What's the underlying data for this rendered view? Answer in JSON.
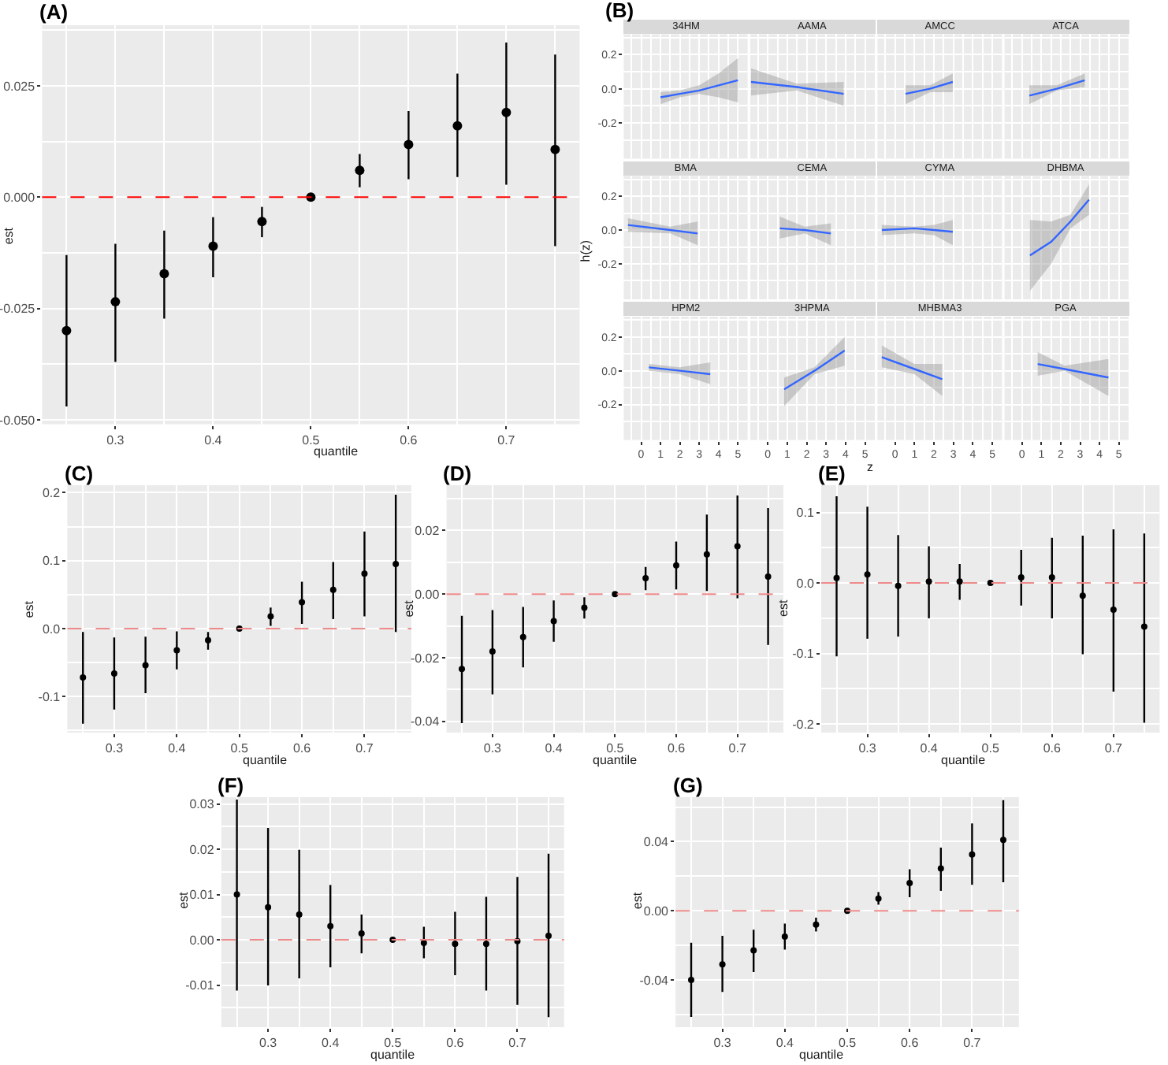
{
  "chart_data": [
    {
      "type": "scatter",
      "title": "(A)",
      "xlabel": "quantile",
      "ylabel": "est",
      "marker": "circle",
      "grid": true,
      "x": [
        0.25,
        0.3,
        0.35,
        0.4,
        0.45,
        0.5,
        0.55,
        0.6,
        0.65,
        0.7,
        0.75
      ],
      "series": [
        {
          "color": "#000000",
          "values": [
            -0.03,
            -0.0235,
            -0.0172,
            -0.011,
            -0.0055,
            0,
            0.006,
            0.0118,
            0.016,
            0.019,
            0.0107
          ],
          "errors": [
            [
              -0.047,
              -0.013
            ],
            [
              -0.037,
              -0.0105
            ],
            [
              -0.0273,
              -0.0075
            ],
            [
              -0.018,
              -0.0045
            ],
            [
              -0.009,
              -0.0022
            ],
            null,
            [
              0.0022,
              0.0097
            ],
            [
              0.004,
              0.0193
            ],
            [
              0.0045,
              0.0277
            ],
            [
              0.0028,
              0.0347
            ],
            [
              -0.011,
              0.032
            ]
          ]
        }
      ],
      "xlim": [
        0.225,
        0.775
      ],
      "xticks": [
        0.3,
        0.4,
        0.5,
        0.6,
        0.7
      ],
      "ylim": [
        -0.051,
        0.0386
      ],
      "yticks": [
        {
          "value": -0.05,
          "label": "-0.050"
        },
        {
          "value": -0.025,
          "label": "-0.025"
        },
        {
          "value": 0,
          "label": "0.000"
        },
        {
          "value": 0.025,
          "label": "0.025"
        }
      ],
      "ref_lines": [
        {
          "axis": "y",
          "value": 0,
          "color": "#ff0000",
          "line_style": "dashed"
        }
      ]
    },
    {
      "type": "line",
      "title": "34HM",
      "annotations": [
        "(B)"
      ],
      "grid": true,
      "tick_labels": "y",
      "series": [
        {
          "color": "#3366ff",
          "x": [
            1,
            2,
            3,
            4,
            5
          ],
          "values": [
            -0.05,
            -0.03,
            -0.01,
            0.02,
            0.05
          ],
          "lower": [
            -0.09,
            -0.05,
            -0.03,
            -0.05,
            -0.08
          ],
          "upper": [
            -0.02,
            -0.01,
            0.02,
            0.09,
            0.18
          ]
        }
      ],
      "xlim": [
        -0.9,
        5.5
      ],
      "xticks": [
        0,
        1,
        2,
        3,
        4,
        5
      ],
      "ylim": [
        -0.41,
        0.32
      ],
      "yticks": [
        -0.2,
        {
          "value": 0,
          "label": "0.0"
        },
        0.2
      ]
    },
    {
      "type": "line",
      "title": "AAMA",
      "grid": true,
      "tick_labels": false,
      "series": [
        {
          "color": "#3366ff",
          "x": [
            -0.86,
            1.5,
            3.9
          ],
          "values": [
            0.04,
            0.01,
            -0.03
          ],
          "lower": [
            -0.04,
            -0.01,
            -0.1
          ],
          "upper": [
            0.12,
            0.03,
            0.04
          ]
        }
      ],
      "xlim": [
        -0.9,
        5.5
      ],
      "xticks": [
        0,
        1,
        2,
        3,
        4,
        5
      ],
      "ylim": [
        -0.41,
        0.32
      ],
      "yticks": [
        -0.2,
        0,
        0.2
      ]
    },
    {
      "type": "line",
      "title": "AMCC",
      "grid": true,
      "tick_labels": false,
      "series": [
        {
          "color": "#3366ff",
          "x": [
            0.54,
            1.8,
            2.97
          ],
          "values": [
            -0.03,
            0.0,
            0.04
          ],
          "lower": [
            -0.09,
            -0.02,
            -0.02
          ],
          "upper": [
            0.02,
            0.02,
            0.09
          ]
        }
      ],
      "xlim": [
        -0.9,
        5.5
      ],
      "xticks": [
        0,
        1,
        2,
        3,
        4,
        5
      ],
      "ylim": [
        -0.41,
        0.32
      ],
      "yticks": [
        -0.2,
        0,
        0.2
      ]
    },
    {
      "type": "line",
      "title": "ATCA",
      "grid": true,
      "tick_labels": false,
      "series": [
        {
          "color": "#3366ff",
          "x": [
            0.38,
            1.8,
            3.24
          ],
          "values": [
            -0.04,
            0.0,
            0.05
          ],
          "lower": [
            -0.09,
            -0.01,
            0.01
          ],
          "upper": [
            0.02,
            0.02,
            0.09
          ]
        }
      ],
      "xlim": [
        -0.9,
        5.5
      ],
      "xticks": [
        0,
        1,
        2,
        3,
        4,
        5
      ],
      "ylim": [
        -0.41,
        0.32
      ],
      "yticks": [
        -0.2,
        0,
        0.2
      ]
    },
    {
      "type": "line",
      "title": "BMA",
      "ylabel": "h(z)",
      "grid": true,
      "tick_labels": "y",
      "series": [
        {
          "color": "#3366ff",
          "x": [
            -0.68,
            1.5,
            2.92
          ],
          "values": [
            0.03,
            0.0,
            -0.02
          ],
          "lower": [
            -0.01,
            -0.02,
            -0.09
          ],
          "upper": [
            0.07,
            0.02,
            0.05
          ]
        }
      ],
      "xlim": [
        -0.9,
        5.5
      ],
      "xticks": [
        0,
        1,
        2,
        3,
        4,
        5
      ],
      "ylim": [
        -0.41,
        0.32
      ],
      "yticks": [
        -0.2,
        {
          "value": 0,
          "label": "0.0"
        },
        0.2
      ]
    },
    {
      "type": "line",
      "title": "CEMA",
      "grid": true,
      "tick_labels": false,
      "series": [
        {
          "color": "#3366ff",
          "x": [
            0.62,
            1.9,
            3.24
          ],
          "values": [
            0.01,
            0.0,
            -0.02
          ],
          "lower": [
            -0.05,
            -0.02,
            -0.09
          ],
          "upper": [
            0.08,
            0.02,
            0.04
          ]
        }
      ],
      "xlim": [
        -0.9,
        5.5
      ],
      "xticks": [
        0,
        1,
        2,
        3,
        4,
        5
      ],
      "ylim": [
        -0.41,
        0.32
      ],
      "yticks": [
        -0.2,
        0,
        0.2
      ]
    },
    {
      "type": "line",
      "title": "CYMA",
      "grid": true,
      "tick_labels": false,
      "series": [
        {
          "color": "#3366ff",
          "x": [
            -0.68,
            1.0,
            2.0,
            2.97
          ],
          "values": [
            0.0,
            0.01,
            0.0,
            -0.01
          ],
          "lower": [
            -0.03,
            -0.02,
            -0.03,
            -0.09
          ],
          "upper": [
            0.03,
            0.02,
            0.03,
            0.06
          ]
        }
      ],
      "xlim": [
        -0.9,
        5.5
      ],
      "xticks": [
        0,
        1,
        2,
        3,
        4,
        5
      ],
      "ylim": [
        -0.41,
        0.32
      ],
      "yticks": [
        -0.2,
        0,
        0.2
      ]
    },
    {
      "type": "line",
      "title": "DHBMA",
      "grid": true,
      "tick_labels": false,
      "series": [
        {
          "color": "#3366ff",
          "x": [
            0.41,
            1.5,
            2.5,
            3.46
          ],
          "values": [
            -0.15,
            -0.07,
            0.05,
            0.18
          ],
          "lower": [
            -0.36,
            -0.2,
            0.01,
            0.09
          ],
          "upper": [
            0.06,
            0.05,
            0.09,
            0.27
          ]
        }
      ],
      "xlim": [
        -0.9,
        5.5
      ],
      "xticks": [
        0,
        1,
        2,
        3,
        4,
        5
      ],
      "ylim": [
        -0.41,
        0.32
      ],
      "yticks": [
        -0.2,
        0,
        0.2
      ]
    },
    {
      "type": "line",
      "title": "HPM2",
      "grid": true,
      "series": [
        {
          "color": "#3366ff",
          "x": [
            0.4,
            2.0,
            3.57
          ],
          "values": [
            0.02,
            0.0,
            -0.02
          ],
          "lower": [
            0.0,
            -0.02,
            -0.08
          ],
          "upper": [
            0.04,
            0.02,
            0.05
          ]
        }
      ],
      "xlim": [
        -0.9,
        5.5
      ],
      "xticks": [
        0,
        1,
        2,
        3,
        4,
        5
      ],
      "ylim": [
        -0.41,
        0.32
      ],
      "yticks": [
        -0.2,
        {
          "value": 0,
          "label": "0.0"
        },
        0.2
      ]
    },
    {
      "type": "line",
      "title": "3HPMA",
      "xlabel": "z",
      "grid": true,
      "tick_labels": "x",
      "series": [
        {
          "color": "#3366ff",
          "x": [
            0.84,
            2.4,
            3.95
          ],
          "values": [
            -0.11,
            0.0,
            0.12
          ],
          "lower": [
            -0.21,
            -0.02,
            0.03
          ],
          "upper": [
            -0.04,
            0.02,
            0.2
          ]
        }
      ],
      "xlim": [
        -0.9,
        5.5
      ],
      "xticks": [
        0,
        1,
        2,
        3,
        4,
        5
      ],
      "ylim": [
        -0.41,
        0.32
      ],
      "yticks": [
        -0.2,
        0,
        0.2
      ]
    },
    {
      "type": "line",
      "title": "MHBMA3",
      "grid": true,
      "tick_labels": "x",
      "series": [
        {
          "color": "#3366ff",
          "x": [
            -0.68,
            1.0,
            2.43
          ],
          "values": [
            0.08,
            0.01,
            -0.05
          ],
          "lower": [
            0.02,
            -0.02,
            -0.15
          ],
          "upper": [
            0.15,
            0.04,
            0.04
          ]
        }
      ],
      "xlim": [
        -0.9,
        5.5
      ],
      "xticks": [
        0,
        1,
        2,
        3,
        4,
        5
      ],
      "ylim": [
        -0.41,
        0.32
      ],
      "yticks": [
        -0.2,
        0,
        0.2
      ]
    },
    {
      "type": "line",
      "title": "PGA",
      "grid": true,
      "tick_labels": "x",
      "series": [
        {
          "color": "#3366ff",
          "x": [
            0.81,
            2.2,
            4.46
          ],
          "values": [
            0.04,
            0.01,
            -0.04
          ],
          "lower": [
            -0.03,
            0.0,
            -0.15
          ],
          "upper": [
            0.11,
            0.03,
            0.07
          ]
        }
      ],
      "xlim": [
        -0.9,
        5.5
      ],
      "xticks": [
        0,
        1,
        2,
        3,
        4,
        5
      ],
      "ylim": [
        -0.41,
        0.32
      ],
      "yticks": [
        -0.2,
        0,
        0.2
      ]
    },
    {
      "type": "scatter",
      "title": "(C)",
      "xlabel": "quantile",
      "ylabel": "est",
      "marker": "circle",
      "grid": true,
      "x": [
        0.25,
        0.3,
        0.35,
        0.4,
        0.45,
        0.5,
        0.55,
        0.6,
        0.65,
        0.7,
        0.75
      ],
      "series": [
        {
          "color": "#000000",
          "values": [
            -0.072,
            -0.066,
            -0.054,
            -0.032,
            -0.017,
            0,
            0.018,
            0.039,
            0.057,
            0.081,
            0.095
          ],
          "errors": [
            [
              -0.14,
              -0.005
            ],
            [
              -0.119,
              -0.013
            ],
            [
              -0.095,
              -0.012
            ],
            [
              -0.06,
              -0.004
            ],
            [
              -0.031,
              -0.005
            ],
            null,
            [
              0.004,
              0.031
            ],
            [
              0.007,
              0.069
            ],
            [
              0.014,
              0.098
            ],
            [
              0.018,
              0.143
            ],
            [
              -0.005,
              0.197
            ]
          ]
        }
      ],
      "xlim": [
        0.225,
        0.775
      ],
      "xticks": [
        0.3,
        0.4,
        0.5,
        0.6,
        0.7
      ],
      "ylim": [
        -0.153,
        0.211
      ],
      "yticks": [
        -0.1,
        {
          "value": 0,
          "label": "0.0"
        },
        0.1,
        0.2
      ],
      "ref_lines": [
        {
          "axis": "y",
          "value": 0,
          "color": "#ef8a8a",
          "line_style": "dashed"
        }
      ]
    },
    {
      "type": "scatter",
      "title": "(D)",
      "xlabel": "quantile",
      "ylabel": "est",
      "marker": "circle",
      "grid": true,
      "x": [
        0.25,
        0.3,
        0.35,
        0.4,
        0.45,
        0.5,
        0.55,
        0.6,
        0.65,
        0.7,
        0.75
      ],
      "series": [
        {
          "color": "#000000",
          "values": [
            -0.0235,
            -0.018,
            -0.0135,
            -0.0085,
            -0.0043,
            0,
            0.005,
            0.009,
            0.0125,
            0.015,
            0.0055
          ],
          "errors": [
            [
              -0.0405,
              -0.0068
            ],
            [
              -0.0315,
              -0.005
            ],
            [
              -0.023,
              -0.004
            ],
            [
              -0.015,
              -0.002
            ],
            [
              -0.0077,
              -0.001
            ],
            null,
            [
              0.0012,
              0.0085
            ],
            [
              0.0015,
              0.0165
            ],
            [
              0.001,
              0.025
            ],
            [
              -0.0013,
              0.031
            ],
            [
              -0.016,
              0.027
            ]
          ]
        }
      ],
      "xlim": [
        0.225,
        0.775
      ],
      "xticks": [
        0.3,
        0.4,
        0.5,
        0.6,
        0.7
      ],
      "ylim": [
        -0.0435,
        0.0342
      ],
      "yticks": [
        -0.04,
        -0.02,
        {
          "value": 0,
          "label": "0.00"
        },
        0.02
      ],
      "ref_lines": [
        {
          "axis": "y",
          "value": 0,
          "color": "#ef8a8a",
          "line_style": "dashed"
        }
      ]
    },
    {
      "type": "scatter",
      "title": "(E)",
      "xlabel": "quantile",
      "ylabel": "est",
      "marker": "circle",
      "grid": true,
      "x": [
        0.25,
        0.3,
        0.35,
        0.4,
        0.45,
        0.5,
        0.55,
        0.6,
        0.65,
        0.7,
        0.75
      ],
      "series": [
        {
          "color": "#000000",
          "values": [
            0.007,
            0.012,
            -0.004,
            0.002,
            0.002,
            0,
            0.008,
            0.008,
            -0.018,
            -0.038,
            -0.062
          ],
          "errors": [
            [
              -0.104,
              0.123
            ],
            [
              -0.079,
              0.108
            ],
            [
              -0.076,
              0.068
            ],
            [
              -0.05,
              0.052
            ],
            [
              -0.024,
              0.027
            ],
            null,
            [
              -0.032,
              0.047
            ],
            [
              -0.05,
              0.064
            ],
            [
              -0.101,
              0.067
            ],
            [
              -0.154,
              0.076
            ],
            [
              -0.198,
              0.07
            ]
          ]
        }
      ],
      "xlim": [
        0.225,
        0.775
      ],
      "xticks": [
        0.3,
        0.4,
        0.5,
        0.6,
        0.7
      ],
      "ylim": [
        -0.212,
        0.1385
      ],
      "yticks": [
        -0.2,
        -0.1,
        {
          "value": 0,
          "label": "0.0"
        },
        0.1
      ],
      "ref_lines": [
        {
          "axis": "y",
          "value": 0,
          "color": "#ef8a8a",
          "line_style": "dashed"
        }
      ]
    },
    {
      "type": "scatter",
      "title": "(F)",
      "xlabel": "quantile",
      "ylabel": "est",
      "marker": "circle",
      "grid": true,
      "x": [
        0.25,
        0.3,
        0.35,
        0.4,
        0.45,
        0.5,
        0.55,
        0.6,
        0.65,
        0.7,
        0.75
      ],
      "series": [
        {
          "color": "#000000",
          "values": [
            0.01,
            0.0072,
            0.0056,
            0.003,
            0.0014,
            0,
            -0.0007,
            -0.0009,
            -0.0009,
            -0.0003,
            0.0009
          ],
          "errors": [
            [
              -0.0112,
              0.031
            ],
            [
              -0.0101,
              0.0247
            ],
            [
              -0.0085,
              0.0199
            ],
            [
              -0.0061,
              0.0121
            ],
            [
              -0.003,
              0.0056
            ],
            null,
            [
              -0.0041,
              0.0029
            ],
            [
              -0.0078,
              0.0062
            ],
            [
              -0.0112,
              0.0095
            ],
            [
              -0.0144,
              0.0139
            ],
            [
              -0.0171,
              0.019
            ]
          ]
        }
      ],
      "xlim": [
        0.225,
        0.775
      ],
      "xticks": [
        0.3,
        0.4,
        0.5,
        0.6,
        0.7
      ],
      "ylim": [
        -0.0193,
        0.0315
      ],
      "yticks": [
        -0.01,
        {
          "value": 0,
          "label": "0.00"
        },
        0.01,
        0.02,
        0.03
      ],
      "ref_lines": [
        {
          "axis": "y",
          "value": 0,
          "color": "#ef8a8a",
          "line_style": "dashed"
        }
      ]
    },
    {
      "type": "scatter",
      "title": "(G)",
      "xlabel": "quantile",
      "ylabel": "est",
      "marker": "circle",
      "grid": true,
      "x": [
        0.25,
        0.3,
        0.35,
        0.4,
        0.45,
        0.5,
        0.55,
        0.6,
        0.65,
        0.7,
        0.75
      ],
      "series": [
        {
          "color": "#000000",
          "values": [
            -0.04,
            -0.031,
            -0.023,
            -0.015,
            -0.008,
            0,
            0.007,
            0.016,
            0.0245,
            0.0325,
            0.041
          ],
          "errors": [
            [
              -0.0615,
              -0.0185
            ],
            [
              -0.047,
              -0.0145
            ],
            [
              -0.0355,
              -0.011
            ],
            [
              -0.0225,
              -0.0075
            ],
            [
              -0.012,
              -0.004
            ],
            null,
            [
              0.0035,
              0.0108
            ],
            [
              0.0078,
              0.024
            ],
            [
              0.0115,
              0.0365
            ],
            [
              0.015,
              0.0505
            ],
            [
              0.0165,
              0.064
            ]
          ]
        }
      ],
      "xlim": [
        0.225,
        0.775
      ],
      "xticks": [
        0.3,
        0.4,
        0.5,
        0.6,
        0.7
      ],
      "ylim": [
        -0.0674,
        0.0657
      ],
      "yticks": [
        -0.04,
        {
          "value": 0,
          "label": "0.00"
        },
        0.04
      ],
      "ref_lines": [
        {
          "axis": "y",
          "value": 0,
          "color": "#ef8a8a",
          "line_style": "dashed"
        }
      ]
    }
  ]
}
